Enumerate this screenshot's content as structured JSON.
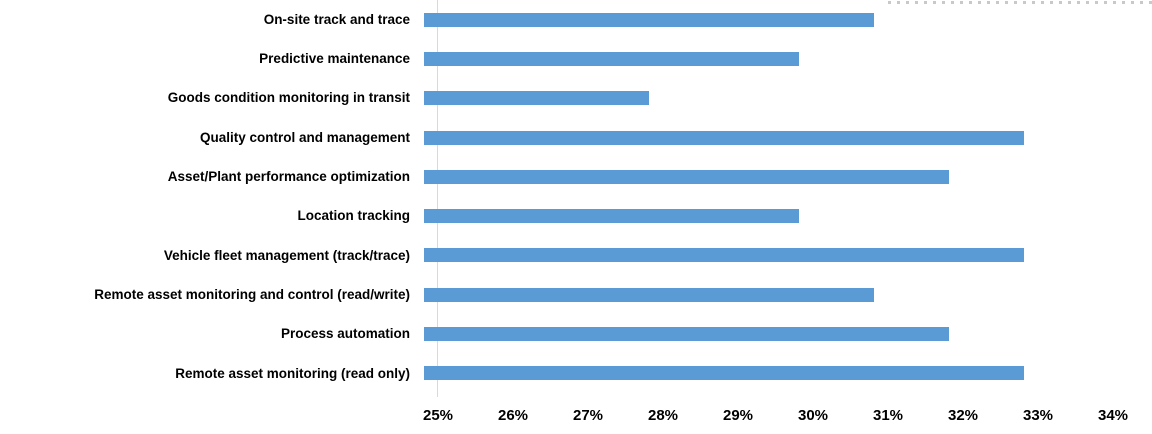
{
  "chart_data": {
    "type": "bar",
    "orientation": "horizontal",
    "categories": [
      "On-site track and trace",
      "Predictive maintenance",
      "Goods condition monitoring in transit",
      "Quality control and management",
      "Asset/Plant performance optimization",
      "Location tracking",
      "Vehicle fleet management (track/trace)",
      "Remote asset monitoring and control (read/write)",
      "Process automation",
      "Remote asset monitoring (read only)"
    ],
    "values": [
      31,
      30,
      28,
      33,
      32,
      30,
      33,
      31,
      32,
      33
    ],
    "value_unit": "%",
    "xlim": [
      25,
      34
    ],
    "x_ticks": [
      "25%",
      "26%",
      "27%",
      "28%",
      "29%",
      "30%",
      "31%",
      "32%",
      "33%",
      "34%"
    ],
    "grid": false,
    "legend": false,
    "bar_color": "#5B9BD5",
    "axis_color": "#D9D9D9",
    "text_color": "#000000"
  }
}
